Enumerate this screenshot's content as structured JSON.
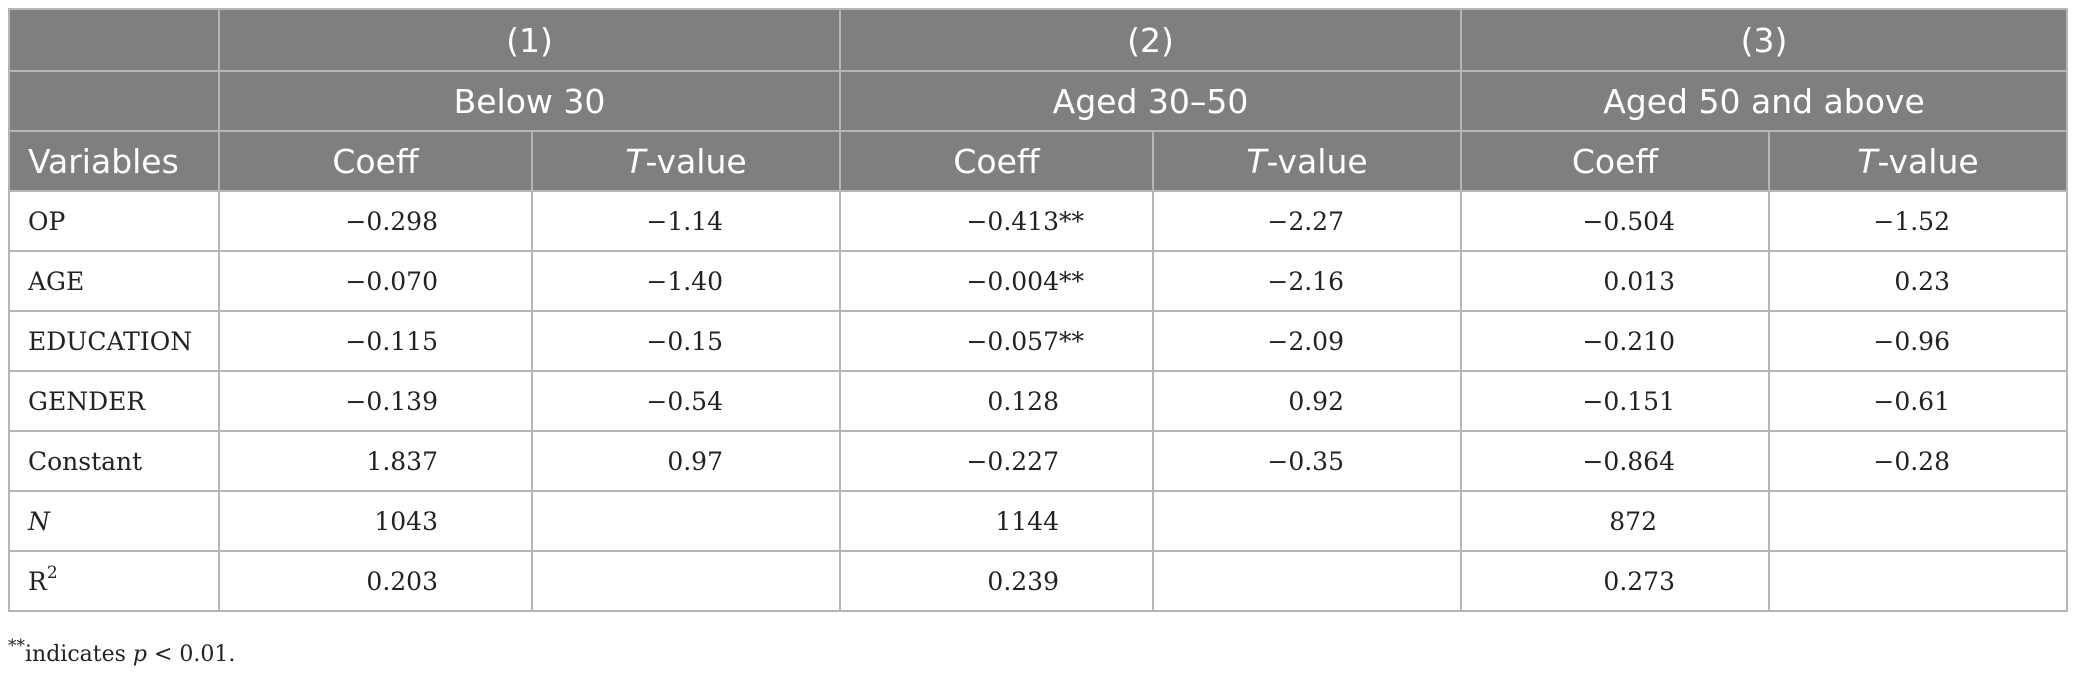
{
  "table": {
    "model_numbers": [
      "(1)",
      "(2)",
      "(3)"
    ],
    "groups": [
      "Below 30",
      "Aged 30–50",
      "Aged 50 and above"
    ],
    "variables_header": "Variables",
    "coeff_header": "Coeff",
    "tvalue_header_italic": "T",
    "tvalue_header_rest": "-value",
    "rows": [
      {
        "label": "OP",
        "c1": "−0.298",
        "t1": "−1.14",
        "c2": "−0.413**",
        "t2": "−2.27",
        "c3": "−0.504",
        "t3": "−1.52"
      },
      {
        "label": "AGE",
        "c1": "−0.070",
        "t1": "−1.40",
        "c2": "−0.004**",
        "t2": "−2.16",
        "c3": "0.013",
        "t3": "0.23"
      },
      {
        "label": "EDUCATION",
        "c1": "−0.115",
        "t1": "−0.15",
        "c2": "−0.057**",
        "t2": "−2.09",
        "c3": "−0.210",
        "t3": "−0.96"
      },
      {
        "label": "GENDER",
        "c1": "−0.139",
        "t1": "−0.54",
        "c2": "0.128",
        "t2": "0.92",
        "c3": "−0.151",
        "t3": "−0.61"
      },
      {
        "label": "Constant",
        "c1": "1.837",
        "t1": "0.97",
        "c2": "−0.227",
        "t2": "−0.35",
        "c3": "−0.864",
        "t3": "−0.28"
      }
    ],
    "n_row": {
      "label": "N",
      "n1": "1043",
      "n2": "1144",
      "n3": "872"
    },
    "r2_row": {
      "label": "R",
      "label_sup": "2",
      "r1": "0.203",
      "r2": "0.239",
      "r3": "0.273"
    }
  },
  "footnote": {
    "stars": "**",
    "text1": "indicates ",
    "p": "p",
    "text2": " < 0.01."
  }
}
